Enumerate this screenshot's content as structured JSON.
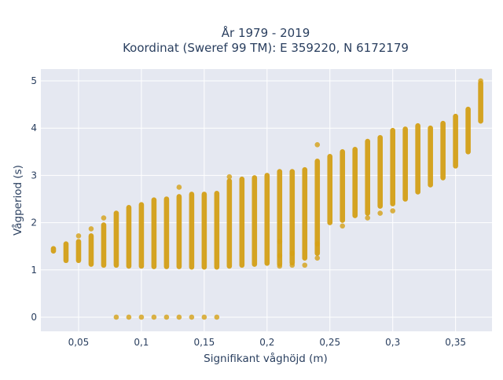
{
  "chart_data": {
    "type": "scatter",
    "title": "År 1979 - 2019",
    "subtitle": "Koordinat (Sweref 99 TM): E 359220, N 6172179",
    "xlabel": "Signifikant våghöjd (m)",
    "ylabel": "Vågperiod (s)",
    "xlim": [
      0.02,
      0.379
    ],
    "ylim": [
      -0.3,
      5.25
    ],
    "x_ticks": [
      0.05,
      0.1,
      0.15,
      0.2,
      0.25,
      0.3,
      0.35
    ],
    "x_tick_labels": [
      "0,05",
      "0,1",
      "0,15",
      "0,2",
      "0,25",
      "0,3",
      "0,35"
    ],
    "y_ticks": [
      0,
      1,
      2,
      3,
      4,
      5
    ],
    "y_tick_labels": [
      "0",
      "1",
      "2",
      "3",
      "4",
      "5"
    ],
    "grid": true,
    "legend": "none",
    "marker_color": "#D4A017",
    "plot_bgcolor": "#E5E8F1",
    "series": [
      {
        "ranges": [
          {
            "x": 0.03,
            "ymin": 1.4,
            "ymax": 1.45
          },
          {
            "x": 0.04,
            "ymin": 1.2,
            "ymax": 1.55
          },
          {
            "x": 0.05,
            "ymin": 1.2,
            "ymax": 1.6
          },
          {
            "x": 0.06,
            "ymin": 1.12,
            "ymax": 1.72
          },
          {
            "x": 0.07,
            "ymin": 1.1,
            "ymax": 1.95
          },
          {
            "x": 0.08,
            "ymin": 1.1,
            "ymax": 2.2
          },
          {
            "x": 0.09,
            "ymin": 1.08,
            "ymax": 2.32
          },
          {
            "x": 0.1,
            "ymin": 1.08,
            "ymax": 2.38
          },
          {
            "x": 0.11,
            "ymin": 1.07,
            "ymax": 2.48
          },
          {
            "x": 0.12,
            "ymin": 1.07,
            "ymax": 2.5
          },
          {
            "x": 0.13,
            "ymin": 1.07,
            "ymax": 2.55
          },
          {
            "x": 0.14,
            "ymin": 1.06,
            "ymax": 2.6
          },
          {
            "x": 0.15,
            "ymin": 1.06,
            "ymax": 2.6
          },
          {
            "x": 0.16,
            "ymin": 1.06,
            "ymax": 2.62
          },
          {
            "x": 0.17,
            "ymin": 1.08,
            "ymax": 2.88
          },
          {
            "x": 0.18,
            "ymin": 1.1,
            "ymax": 2.92
          },
          {
            "x": 0.19,
            "ymin": 1.12,
            "ymax": 2.95
          },
          {
            "x": 0.2,
            "ymin": 1.14,
            "ymax": 3.0
          },
          {
            "x": 0.21,
            "ymin": 1.12,
            "ymax": 3.08
          },
          {
            "x": 0.22,
            "ymin": 1.15,
            "ymax": 3.08
          },
          {
            "x": 0.23,
            "ymin": 1.25,
            "ymax": 3.12
          },
          {
            "x": 0.24,
            "ymin": 1.35,
            "ymax": 3.3
          },
          {
            "x": 0.25,
            "ymin": 2.0,
            "ymax": 3.4
          },
          {
            "x": 0.26,
            "ymin": 2.05,
            "ymax": 3.5
          },
          {
            "x": 0.27,
            "ymin": 2.15,
            "ymax": 3.55
          },
          {
            "x": 0.28,
            "ymin": 2.2,
            "ymax": 3.72
          },
          {
            "x": 0.29,
            "ymin": 2.35,
            "ymax": 3.8
          },
          {
            "x": 0.3,
            "ymin": 2.4,
            "ymax": 3.95
          },
          {
            "x": 0.31,
            "ymin": 2.5,
            "ymax": 3.98
          },
          {
            "x": 0.32,
            "ymin": 2.65,
            "ymax": 4.05
          },
          {
            "x": 0.33,
            "ymin": 2.8,
            "ymax": 4.0
          },
          {
            "x": 0.34,
            "ymin": 2.95,
            "ymax": 4.1
          },
          {
            "x": 0.35,
            "ymin": 3.2,
            "ymax": 4.25
          },
          {
            "x": 0.36,
            "ymin": 3.5,
            "ymax": 4.4
          },
          {
            "x": 0.37,
            "ymin": 4.15,
            "ymax": 4.95
          }
        ],
        "points": [
          {
            "x": 0.05,
            "y": 1.72
          },
          {
            "x": 0.06,
            "y": 1.87
          },
          {
            "x": 0.07,
            "y": 2.1
          },
          {
            "x": 0.13,
            "y": 2.75
          },
          {
            "x": 0.17,
            "y": 2.97
          },
          {
            "x": 0.21,
            "y": 1.6
          },
          {
            "x": 0.21,
            "y": 1.3
          },
          {
            "x": 0.21,
            "y": 1.08
          },
          {
            "x": 0.22,
            "y": 1.35
          },
          {
            "x": 0.22,
            "y": 1.1
          },
          {
            "x": 0.23,
            "y": 1.1
          },
          {
            "x": 0.24,
            "y": 1.25
          },
          {
            "x": 0.24,
            "y": 1.55
          },
          {
            "x": 0.24,
            "y": 3.65
          },
          {
            "x": 0.26,
            "y": 1.93
          },
          {
            "x": 0.28,
            "y": 2.1
          },
          {
            "x": 0.29,
            "y": 2.2
          },
          {
            "x": 0.3,
            "y": 2.25
          },
          {
            "x": 0.37,
            "y": 5.0
          },
          {
            "x": 0.08,
            "y": 0
          },
          {
            "x": 0.09,
            "y": 0
          },
          {
            "x": 0.1,
            "y": 0
          },
          {
            "x": 0.11,
            "y": 0
          },
          {
            "x": 0.12,
            "y": 0
          },
          {
            "x": 0.13,
            "y": 0
          },
          {
            "x": 0.14,
            "y": 0
          },
          {
            "x": 0.15,
            "y": 0
          },
          {
            "x": 0.16,
            "y": 0
          }
        ]
      }
    ]
  }
}
